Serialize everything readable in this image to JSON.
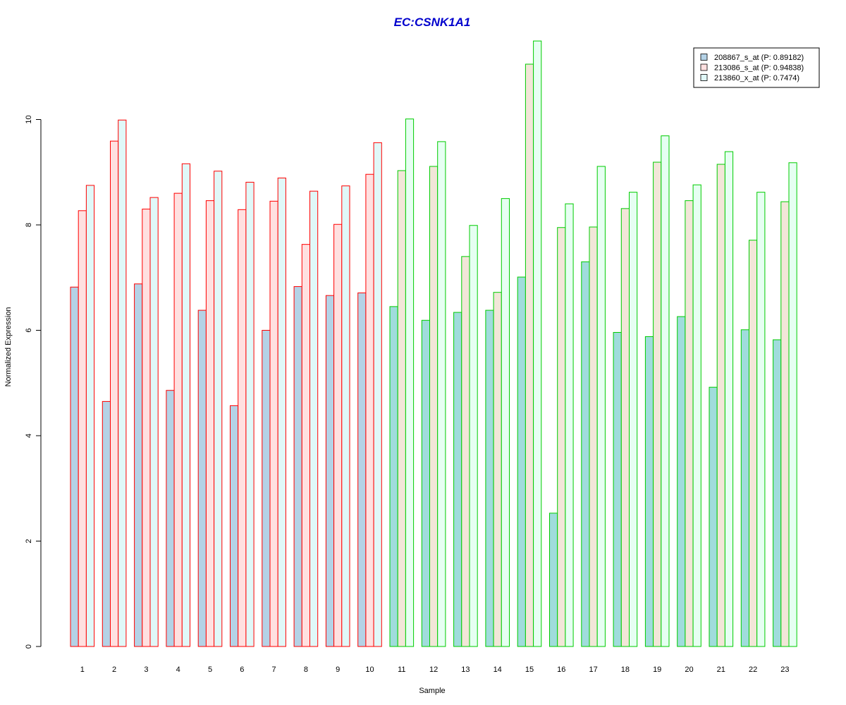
{
  "chart_data": {
    "type": "bar",
    "title": "EC:CSNK1A1",
    "xlabel": "Sample",
    "ylabel": "Normalized Expression",
    "categories": [
      "1",
      "2",
      "3",
      "4",
      "5",
      "6",
      "7",
      "8",
      "9",
      "10",
      "11",
      "12",
      "13",
      "14",
      "15",
      "16",
      "17",
      "18",
      "19",
      "20",
      "21",
      "22",
      "23"
    ],
    "ylim": [
      0,
      11.5
    ],
    "yticks": [
      0,
      2,
      4,
      6,
      8,
      10
    ],
    "grid": false,
    "legend_position": "top-right",
    "group_border_colors": {
      "samples_1_10": "#FF0000",
      "samples_11_23_label": "green",
      "samples_11_23": "#00CC00",
      "split_after_index": 10
    },
    "series": [
      {
        "name": "208867_s_at (P: 0.89182)",
        "fill_group1": "#B4D2E6",
        "fill_group2": "#A0DCDC",
        "values": [
          6.82,
          4.65,
          6.88,
          4.86,
          6.38,
          4.57,
          6.0,
          6.83,
          6.66,
          6.71,
          6.45,
          6.19,
          6.34,
          6.38,
          7.01,
          2.53,
          7.3,
          5.96,
          5.88,
          6.26,
          4.92,
          6.01,
          5.82
        ]
      },
      {
        "name": "213086_s_at (P: 0.94838)",
        "fill_group1": "#FFE0E0",
        "fill_group2": "#F2E6D8",
        "values": [
          8.27,
          9.59,
          8.3,
          8.6,
          8.46,
          8.29,
          8.45,
          7.63,
          8.01,
          8.96,
          9.03,
          9.11,
          7.4,
          6.72,
          11.05,
          7.95,
          7.96,
          8.31,
          9.19,
          8.46,
          9.15,
          7.71,
          8.44
        ]
      },
      {
        "name": "213860_x_at (P: 0.7474)",
        "fill_group1": "#E0F8F8",
        "fill_group2": "#E6FFF2",
        "values": [
          8.75,
          9.99,
          8.52,
          9.16,
          9.02,
          8.81,
          8.89,
          8.64,
          8.74,
          9.56,
          10.01,
          9.58,
          7.99,
          8.5,
          11.49,
          8.4,
          9.11,
          8.62,
          9.69,
          8.76,
          9.39,
          8.62,
          9.18
        ]
      }
    ]
  }
}
